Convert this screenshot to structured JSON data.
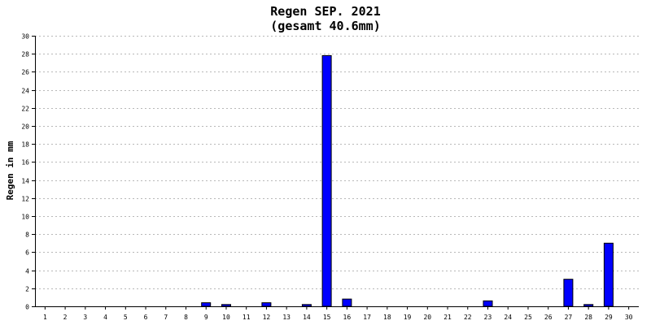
{
  "chart_data": {
    "type": "bar",
    "title": "Regen SEP. 2021",
    "subtitle": "(gesamt 40.6mm)",
    "xlabel": "",
    "ylabel": "Regen in mm",
    "categories": [
      "1",
      "2",
      "3",
      "4",
      "5",
      "6",
      "7",
      "8",
      "9",
      "10",
      "11",
      "12",
      "13",
      "14",
      "15",
      "16",
      "17",
      "18",
      "19",
      "20",
      "21",
      "22",
      "23",
      "24",
      "25",
      "26",
      "27",
      "28",
      "29",
      "30"
    ],
    "values": [
      0,
      0,
      0,
      0,
      0,
      0,
      0,
      0,
      0.4,
      0.2,
      0,
      0.4,
      0,
      0.2,
      27.8,
      0.8,
      0,
      0,
      0,
      0,
      0,
      0,
      0.6,
      0,
      0,
      0,
      3.0,
      0.2,
      7.0,
      0
    ],
    "ylim": [
      0,
      30
    ],
    "yticks": [
      0,
      2,
      4,
      6,
      8,
      10,
      12,
      14,
      16,
      18,
      20,
      22,
      24,
      26,
      28,
      30
    ],
    "grid": true,
    "legend": "none",
    "colors": {
      "bar": "#0000ff",
      "bar_border": "#000000",
      "grid": "#b8b8b8",
      "axis": "#000000"
    }
  }
}
